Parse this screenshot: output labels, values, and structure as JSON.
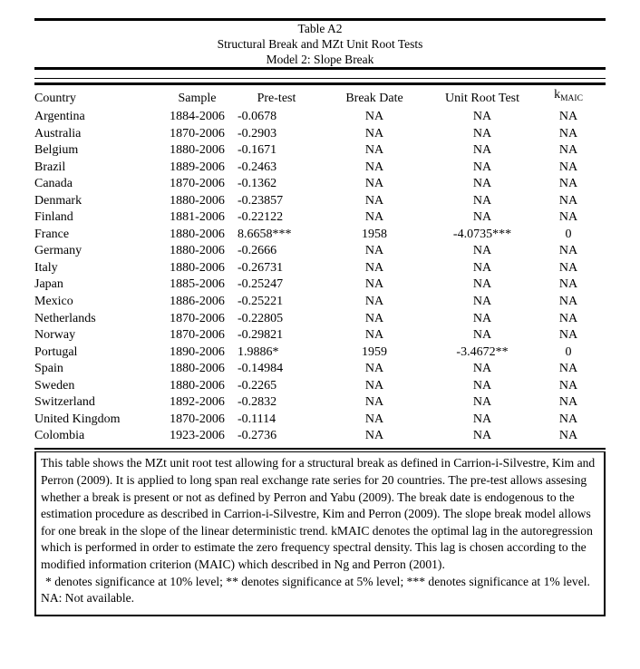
{
  "title": {
    "label": "Table A2",
    "subtitle": "Structural Break and MZt Unit Root Tests",
    "model": "Model 2: Slope Break"
  },
  "table": {
    "headers": {
      "country": "Country",
      "sample": "Sample",
      "pretest": "Pre-test",
      "break_date": "Break Date",
      "unit_root_test": "Unit Root Test",
      "kmaic_main": "k",
      "kmaic_sub": "MAIC"
    },
    "rows": [
      {
        "country": "Argentina",
        "sample": "1884-2006",
        "pretest": "-0.0678",
        "break_date": "NA",
        "unit_root_test": "NA",
        "kmaic": "NA"
      },
      {
        "country": "Australia",
        "sample": "1870-2006",
        "pretest": "-0.2903",
        "break_date": "NA",
        "unit_root_test": "NA",
        "kmaic": "NA"
      },
      {
        "country": "Belgium",
        "sample": "1880-2006",
        "pretest": "-0.1671",
        "break_date": "NA",
        "unit_root_test": "NA",
        "kmaic": "NA"
      },
      {
        "country": "Brazil",
        "sample": "1889-2006",
        "pretest": "-0.2463",
        "break_date": "NA",
        "unit_root_test": "NA",
        "kmaic": "NA"
      },
      {
        "country": "Canada",
        "sample": "1870-2006",
        "pretest": "-0.1362",
        "break_date": "NA",
        "unit_root_test": "NA",
        "kmaic": "NA"
      },
      {
        "country": "Denmark",
        "sample": "1880-2006",
        "pretest": "-0.23857",
        "break_date": "NA",
        "unit_root_test": "NA",
        "kmaic": "NA"
      },
      {
        "country": "Finland",
        "sample": "1881-2006",
        "pretest": "-0.22122",
        "break_date": "NA",
        "unit_root_test": "NA",
        "kmaic": "NA"
      },
      {
        "country": "France",
        "sample": "1880-2006",
        "pretest": "8.6658***",
        "break_date": "1958",
        "unit_root_test": "-4.0735***",
        "kmaic": "0"
      },
      {
        "country": "Germany",
        "sample": "1880-2006",
        "pretest": "-0.2666",
        "break_date": "NA",
        "unit_root_test": "NA",
        "kmaic": "NA"
      },
      {
        "country": "Italy",
        "sample": "1880-2006",
        "pretest": "-0.26731",
        "break_date": "NA",
        "unit_root_test": "NA",
        "kmaic": "NA"
      },
      {
        "country": "Japan",
        "sample": "1885-2006",
        "pretest": "-0.25247",
        "break_date": "NA",
        "unit_root_test": "NA",
        "kmaic": "NA"
      },
      {
        "country": "Mexico",
        "sample": "1886-2006",
        "pretest": "-0.25221",
        "break_date": "NA",
        "unit_root_test": "NA",
        "kmaic": "NA"
      },
      {
        "country": "Netherlands",
        "sample": "1870-2006",
        "pretest": "-0.22805",
        "break_date": "NA",
        "unit_root_test": "NA",
        "kmaic": "NA"
      },
      {
        "country": "Norway",
        "sample": "1870-2006",
        "pretest": "-0.29821",
        "break_date": "NA",
        "unit_root_test": "NA",
        "kmaic": "NA"
      },
      {
        "country": "Portugal",
        "sample": "1890-2006",
        "pretest": "1.9886*",
        "break_date": "1959",
        "unit_root_test": "-3.4672**",
        "kmaic": "0"
      },
      {
        "country": "Spain",
        "sample": "1880-2006",
        "pretest": "-0.14984",
        "break_date": "NA",
        "unit_root_test": "NA",
        "kmaic": "NA"
      },
      {
        "country": "Sweden",
        "sample": "1880-2006",
        "pretest": "-0.2265",
        "break_date": "NA",
        "unit_root_test": "NA",
        "kmaic": "NA"
      },
      {
        "country": "Switzerland",
        "sample": "1892-2006",
        "pretest": "-0.2832",
        "break_date": "NA",
        "unit_root_test": "NA",
        "kmaic": "NA"
      },
      {
        "country": "United Kingdom",
        "sample": "1870-2006",
        "pretest": "-0.1114",
        "break_date": "NA",
        "unit_root_test": "NA",
        "kmaic": "NA"
      },
      {
        "country": "Colombia",
        "sample": "1923-2006",
        "pretest": "-0.2736",
        "break_date": "NA",
        "unit_root_test": "NA",
        "kmaic": "NA"
      }
    ]
  },
  "notes": {
    "body": "This table shows the MZt unit root test allowing for a structural break as defined in Carrion-i-Silvestre, Kim and Perron (2009). It is applied to long span real exchange rate series for 20 countries. The pre-test allows assesing whether a break is present or not as defined by Perron and Yabu (2009). The break date is endogenous to the estimation procedure as described in Carrion-i-Silvestre, Kim and Perron (2009). The slope break model allows for one break in the slope of the linear deterministic trend. kMAIC denotes the optimal lag in the autoregression which is performed in order to estimate the zero frequency spectral density. This lag is chosen according to the modified information criterion (MAIC) which described in Ng and Perron (2001).",
    "significance": "* denotes significance at 10% level; ** denotes significance at 5% level; *** denotes significance at 1% level. NA: Not available."
  }
}
